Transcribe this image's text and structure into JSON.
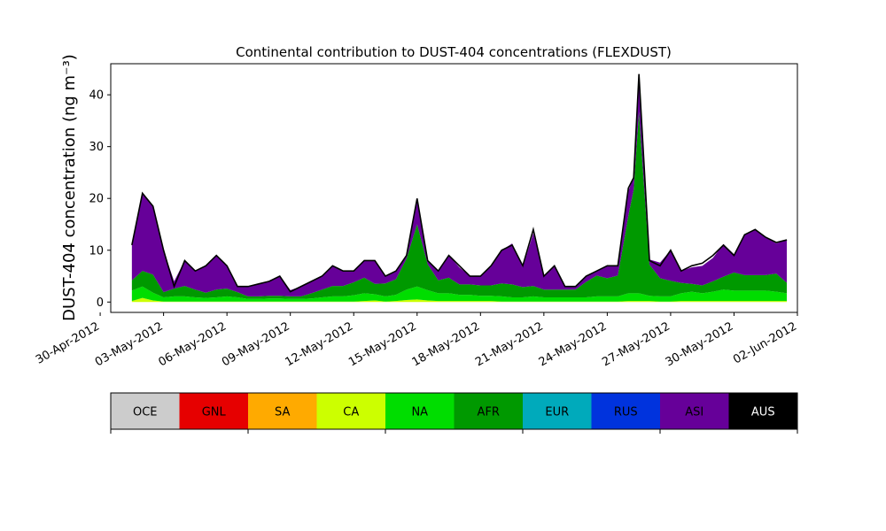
{
  "chart_data": {
    "type": "area",
    "title": "Continental contribution to DUST-404 concentrations (FLEXDUST)",
    "ylabel": "DUST-404 concentration (ng m⁻³)",
    "xlabel": "",
    "ylim": [
      -2,
      46
    ],
    "yticks": [
      0,
      10,
      20,
      30,
      40
    ],
    "xlim": [
      "2012-04-30T12:00",
      "2012-06-02T00:00"
    ],
    "xticks": [
      "30-Apr-2012",
      "03-May-2012",
      "06-May-2012",
      "09-May-2012",
      "12-May-2012",
      "15-May-2012",
      "18-May-2012",
      "21-May-2012",
      "24-May-2012",
      "27-May-2012",
      "30-May-2012",
      "02-Jun-2012"
    ],
    "x": [
      "2012-05-01T12:00",
      "2012-05-02T00:00",
      "2012-05-02T12:00",
      "2012-05-03T00:00",
      "2012-05-03T12:00",
      "2012-05-04T00:00",
      "2012-05-04T12:00",
      "2012-05-05T00:00",
      "2012-05-05T12:00",
      "2012-05-06T00:00",
      "2012-05-06T12:00",
      "2012-05-07T00:00",
      "2012-05-07T12:00",
      "2012-05-08T00:00",
      "2012-05-08T12:00",
      "2012-05-09T00:00",
      "2012-05-09T12:00",
      "2012-05-10T00:00",
      "2012-05-10T12:00",
      "2012-05-11T00:00",
      "2012-05-11T12:00",
      "2012-05-12T00:00",
      "2012-05-12T12:00",
      "2012-05-13T00:00",
      "2012-05-13T12:00",
      "2012-05-14T00:00",
      "2012-05-14T12:00",
      "2012-05-15T00:00",
      "2012-05-15T12:00",
      "2012-05-16T00:00",
      "2012-05-16T12:00",
      "2012-05-17T00:00",
      "2012-05-17T12:00",
      "2012-05-18T00:00",
      "2012-05-18T12:00",
      "2012-05-19T00:00",
      "2012-05-19T12:00",
      "2012-05-20T00:00",
      "2012-05-20T12:00",
      "2012-05-21T00:00",
      "2012-05-21T12:00",
      "2012-05-22T00:00",
      "2012-05-22T12:00",
      "2012-05-23T00:00",
      "2012-05-23T12:00",
      "2012-05-24T00:00",
      "2012-05-24T12:00",
      "2012-05-25T00:00",
      "2012-05-25T06:00",
      "2012-05-25T12:00",
      "2012-05-26T00:00",
      "2012-05-26T12:00",
      "2012-05-27T00:00",
      "2012-05-27T12:00",
      "2012-05-28T00:00",
      "2012-05-28T12:00",
      "2012-05-29T00:00",
      "2012-05-29T12:00",
      "2012-05-30T00:00",
      "2012-05-30T12:00",
      "2012-05-31T00:00",
      "2012-05-31T12:00",
      "2012-06-01T00:00",
      "2012-06-01T12:00"
    ],
    "series": [
      {
        "name": "OCE",
        "color": "#cccccc",
        "values": [
          0,
          0,
          0,
          0,
          0,
          0,
          0,
          0,
          0,
          0,
          0,
          0,
          0,
          0,
          0,
          0,
          0,
          0,
          0,
          0,
          0,
          0,
          0,
          0,
          0,
          0,
          0,
          0,
          0,
          0,
          0,
          0,
          0,
          0,
          0,
          0,
          0,
          0,
          0,
          0,
          0,
          0,
          0,
          0,
          0,
          0,
          0,
          0,
          0,
          0,
          0,
          0,
          0,
          0,
          0,
          0,
          0,
          0,
          0,
          0,
          0,
          0,
          0,
          0
        ]
      },
      {
        "name": "GNL",
        "color": "#e60000",
        "values": [
          0,
          0,
          0,
          0,
          0,
          0,
          0,
          0,
          0,
          0,
          0,
          0,
          0,
          0,
          0,
          0,
          0,
          0,
          0,
          0,
          0,
          0,
          0,
          0,
          0,
          0,
          0,
          0,
          0,
          0,
          0,
          0,
          0,
          0,
          0,
          0,
          0,
          0,
          0,
          0,
          0,
          0,
          0,
          0,
          0,
          0,
          0,
          0,
          0,
          0,
          0,
          0,
          0,
          0,
          0,
          0,
          0,
          0,
          0,
          0,
          0,
          0,
          0,
          0
        ]
      },
      {
        "name": "SA",
        "color": "#ffaa00",
        "values": [
          0,
          0,
          0,
          0,
          0,
          0,
          0,
          0,
          0,
          0,
          0,
          0,
          0,
          0,
          0,
          0,
          0,
          0,
          0,
          0,
          0,
          0,
          0,
          0,
          0,
          0,
          0,
          0,
          0,
          0,
          0,
          0,
          0,
          0,
          0,
          0,
          0,
          0,
          0,
          0,
          0,
          0,
          0,
          0,
          0,
          0,
          0,
          0,
          0,
          0,
          0,
          0,
          0,
          0,
          0,
          0,
          0,
          0,
          0,
          0,
          0,
          0,
          0,
          0
        ]
      },
      {
        "name": "CA",
        "color": "#ccff00",
        "values": [
          0.2,
          0.8,
          0.3,
          0.1,
          0.1,
          0.1,
          0.1,
          0.1,
          0.1,
          0.1,
          0.1,
          0.1,
          0.1,
          0.1,
          0.1,
          0.1,
          0.1,
          0.1,
          0.1,
          0.1,
          0.1,
          0.1,
          0.2,
          0.3,
          0.1,
          0.2,
          0.4,
          0.5,
          0.3,
          0.2,
          0.2,
          0.2,
          0.2,
          0.2,
          0.2,
          0.1,
          0.1,
          0.1,
          0.1,
          0.1,
          0.1,
          0.1,
          0.1,
          0.1,
          0.1,
          0.1,
          0.1,
          0.2,
          0.2,
          0.2,
          0.2,
          0.1,
          0.1,
          0.2,
          0.2,
          0.2,
          0.2,
          0.2,
          0.2,
          0.2,
          0.2,
          0.2,
          0.2,
          0.2
        ]
      },
      {
        "name": "NA",
        "color": "#00dd00",
        "values": [
          2,
          2.2,
          1.5,
          0.8,
          1,
          1,
          0.8,
          0.7,
          0.8,
          1,
          0.8,
          0.5,
          0.5,
          0.6,
          0.6,
          0.5,
          0.5,
          0.6,
          0.8,
          1,
          1,
          1.2,
          1.5,
          1.2,
          1,
          1.2,
          2,
          2.5,
          2,
          1.5,
          1.5,
          1.2,
          1.2,
          1,
          1,
          1,
          0.8,
          0.8,
          1,
          0.8,
          0.8,
          0.8,
          0.8,
          0.8,
          1,
          1,
          1,
          1.5,
          1.5,
          1.5,
          1,
          1,
          1,
          1.5,
          1.8,
          1.5,
          1.8,
          2.2,
          2,
          2,
          2,
          2,
          1.8,
          1.5
        ]
      },
      {
        "name": "AFR",
        "color": "#009900",
        "values": [
          2,
          3,
          3.5,
          1,
          1.5,
          2,
          1.5,
          1,
          1.5,
          1.5,
          1,
          0.5,
          0.5,
          0.5,
          0.5,
          0.5,
          0.5,
          1,
          1.5,
          2,
          2,
          2.5,
          3,
          2,
          2.5,
          3,
          6,
          12,
          5,
          2.5,
          3,
          2,
          2,
          2,
          2,
          2.5,
          2.5,
          2,
          2,
          1.5,
          1.5,
          1.5,
          1.5,
          3,
          4,
          3.5,
          4,
          15,
          20,
          35,
          6,
          3.5,
          3,
          2,
          1.5,
          1.5,
          2,
          2.5,
          3.5,
          3,
          3,
          3,
          3.5,
          2
        ]
      },
      {
        "name": "EUR",
        "color": "#00aabb",
        "values": [
          0,
          0,
          0,
          0,
          0,
          0,
          0,
          0,
          0,
          0,
          0,
          0,
          0,
          0,
          0,
          0,
          0,
          0,
          0,
          0,
          0,
          0,
          0,
          0,
          0,
          0,
          0,
          0,
          0,
          0,
          0,
          0,
          0,
          0,
          0,
          0,
          0,
          0,
          0,
          0,
          0,
          0,
          0,
          0,
          0,
          0,
          0,
          0,
          0,
          0,
          0,
          0,
          0,
          0,
          0,
          0,
          0,
          0,
          0,
          0,
          0,
          0,
          0,
          0
        ]
      },
      {
        "name": "RUS",
        "color": "#0033dd",
        "values": [
          0,
          0,
          0,
          0,
          0,
          0,
          0,
          0,
          0,
          0,
          0,
          0,
          0,
          0,
          0,
          0,
          0,
          0,
          0,
          0,
          0,
          0,
          0,
          0,
          0,
          0,
          0,
          0,
          0,
          0,
          0,
          0,
          0,
          0,
          0,
          0,
          0,
          0,
          0,
          0,
          0,
          0,
          0,
          0,
          0,
          0,
          0,
          0,
          0,
          0,
          0,
          0,
          0,
          0,
          0,
          0,
          0,
          0,
          0,
          0,
          0,
          0,
          0,
          0
        ]
      },
      {
        "name": "ASI",
        "color": "#660099",
        "values": [
          6.8,
          15,
          13.2,
          8.1,
          1.4,
          4.9,
          3.6,
          5.2,
          6.6,
          4.4,
          1.1,
          2,
          2.4,
          2.9,
          3.9,
          1.2,
          1.9,
          2.4,
          2.6,
          4,
          2.9,
          2.3,
          3.3,
          4.5,
          1.4,
          1.6,
          0.6,
          4.5,
          0.7,
          1.8,
          4.3,
          3.3,
          1.6,
          1.8,
          3.6,
          6.4,
          7.9,
          3.8,
          10.2,
          2.7,
          4.6,
          0.6,
          0.6,
          1.1,
          0.9,
          2.4,
          1.9,
          4.8,
          2.3,
          6.3,
          1,
          3,
          5.9,
          2.3,
          3.2,
          3.8,
          4.5,
          6.3,
          3.5,
          7.8,
          8.8,
          7.3,
          5.8,
          8.3
        ]
      },
      {
        "name": "AUS",
        "color": "#000000",
        "values": [
          0,
          0,
          0,
          0,
          0,
          0,
          0,
          0,
          0,
          0,
          0,
          0,
          0,
          0,
          0,
          0,
          0,
          0,
          0,
          0,
          0,
          0,
          0,
          0,
          0,
          0,
          0,
          0,
          0,
          0,
          0,
          0,
          0,
          0,
          0,
          0,
          0,
          0,
          0,
          0,
          0,
          0,
          0,
          0,
          0,
          0,
          0,
          0,
          0,
          0,
          0,
          0,
          0,
          0,
          0,
          0,
          0,
          0,
          0,
          0,
          0,
          0,
          0,
          0
        ]
      }
    ],
    "total": [
      11,
      21,
      18.5,
      10,
      3,
      8,
      6,
      7,
      9,
      7,
      3,
      3,
      3.5,
      4,
      5,
      2,
      3,
      4,
      5,
      7,
      6,
      6,
      8,
      8,
      5,
      6,
      9,
      20,
      8,
      6,
      9,
      7,
      5,
      5,
      7,
      10,
      11,
      7,
      14,
      5,
      7,
      3,
      3,
      5,
      6,
      7,
      7,
      22,
      24,
      44,
      8,
      7,
      10,
      6,
      7,
      7.5,
      9,
      11,
      9,
      13,
      14,
      12.5,
      11.5,
      12
    ],
    "legend": {
      "placement": "below",
      "items": [
        "OCE",
        "GNL",
        "SA",
        "CA",
        "NA",
        "AFR",
        "EUR",
        "RUS",
        "ASI",
        "AUS"
      ]
    }
  }
}
